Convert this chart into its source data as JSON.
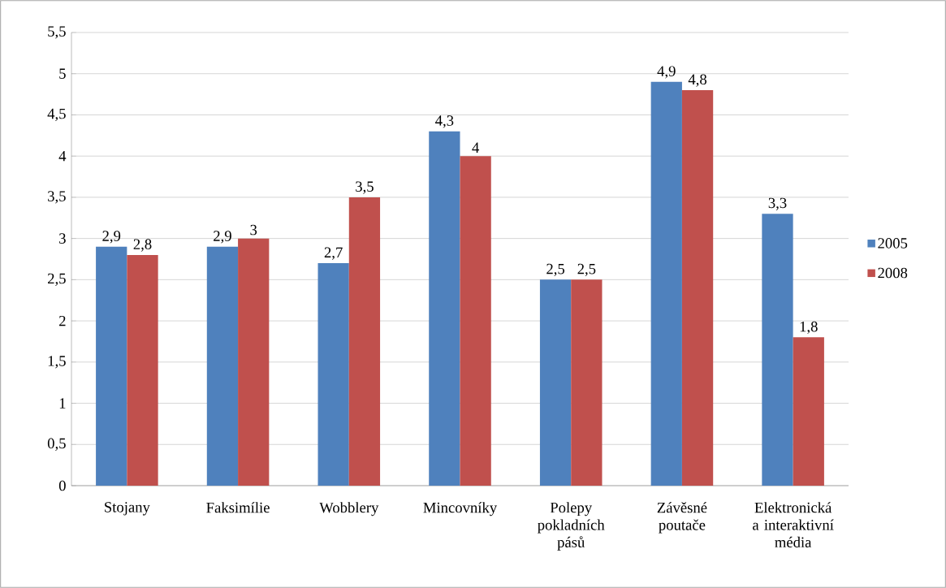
{
  "chart_data": {
    "type": "bar",
    "categories": [
      "Stojany",
      "Faksimílie",
      "Wobblery",
      "Mincovníky",
      "Polepy pokladních pásů",
      "Závěsné poutače",
      "Elektronická a interaktivní média"
    ],
    "series": [
      {
        "name": "2005",
        "color": "#4f81bd",
        "values": [
          2.9,
          2.9,
          2.7,
          4.3,
          2.5,
          4.9,
          3.3
        ],
        "value_labels": [
          "2,9",
          "2,9",
          "2,7",
          "4,3",
          "2,5",
          "4,9",
          "3,3"
        ]
      },
      {
        "name": "2008",
        "color": "#c0504d",
        "values": [
          2.8,
          3,
          3.5,
          4,
          2.5,
          4.8,
          1.8
        ],
        "value_labels": [
          "2,8",
          "3",
          "3,5",
          "4",
          "2,5",
          "4,8",
          "1,8"
        ]
      }
    ],
    "ylim": [
      0,
      5.5
    ],
    "yticks": [
      0,
      {
        "value": 0.5,
        "label": "0,5"
      },
      1,
      {
        "value": 1.5,
        "label": "1,5"
      },
      2,
      {
        "value": 2.5,
        "label": "2,5"
      },
      3,
      {
        "value": 3.5,
        "label": "3,5"
      },
      4,
      {
        "value": 4.5,
        "label": "4,5"
      },
      5,
      {
        "value": 5.5,
        "label": "5,5"
      }
    ],
    "grid": "y",
    "legend": "right"
  }
}
